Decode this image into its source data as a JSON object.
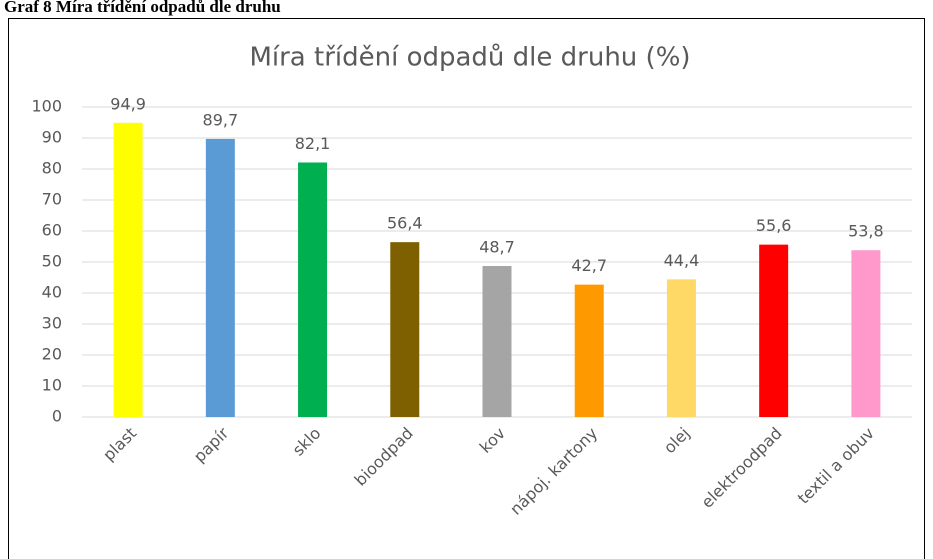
{
  "caption": "Graf 8 Míra třídění odpadů dle druhu",
  "chart_data": {
    "type": "bar",
    "title": "Míra třídění odpadů dle druhu (%)",
    "categories": [
      "plast",
      "papír",
      "sklo",
      "bioodpad",
      "kov",
      "nápoj. kartony",
      "olej",
      "elektroodpad",
      "textil a obuv"
    ],
    "values": [
      94.9,
      89.7,
      82.1,
      56.4,
      48.7,
      42.7,
      44.4,
      55.6,
      53.8
    ],
    "value_labels": [
      "94,9",
      "89,7",
      "82,1",
      "56,4",
      "48,7",
      "42,7",
      "44,4",
      "55,6",
      "53,8"
    ],
    "colors": [
      "#ffff00",
      "#5b9bd5",
      "#00b050",
      "#7f6000",
      "#a5a5a5",
      "#ff9900",
      "#ffd966",
      "#ff0000",
      "#ff99cc"
    ],
    "ylim": [
      0,
      100
    ],
    "yticks": [
      0,
      10,
      20,
      30,
      40,
      50,
      60,
      70,
      80,
      90,
      100
    ],
    "grid": true
  }
}
